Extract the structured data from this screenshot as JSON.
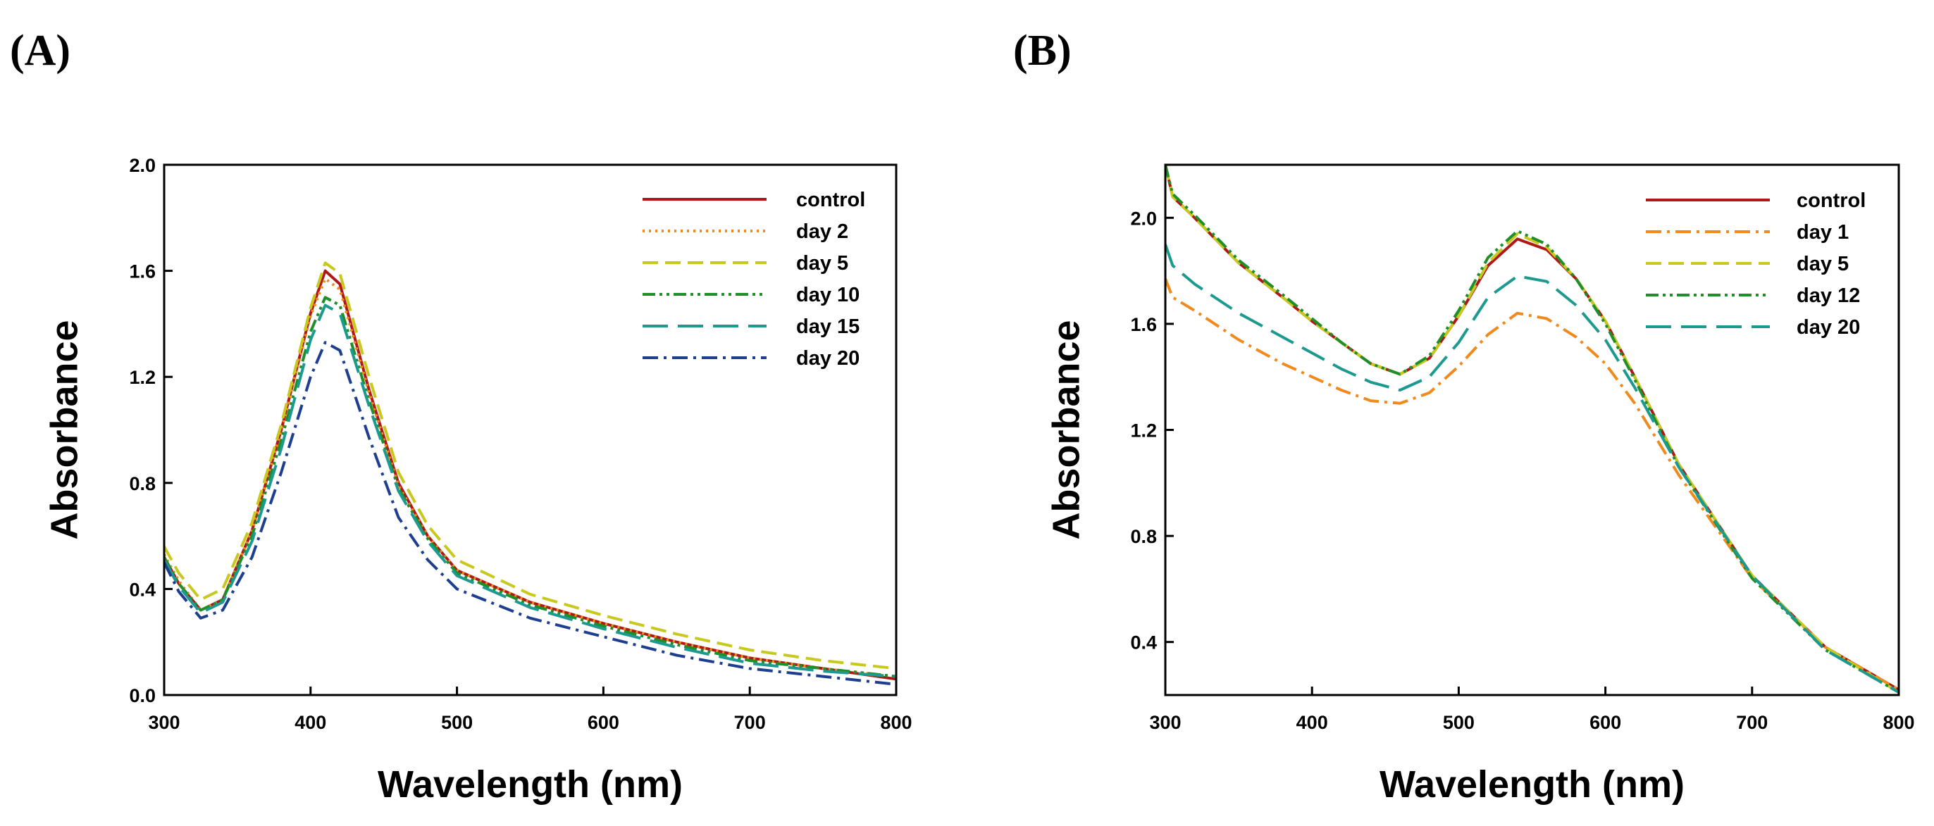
{
  "figure": {
    "panel_labels": [
      "(A)",
      "(B)"
    ]
  },
  "chart_data": [
    {
      "type": "line",
      "panel": "(A)",
      "title": "",
      "xlabel": "Wavelength (nm)",
      "ylabel": "Absorbance",
      "xlim": [
        300,
        800
      ],
      "ylim": [
        0.0,
        2.0
      ],
      "xticks": [
        300,
        400,
        500,
        600,
        700,
        800
      ],
      "yticks": [
        0.0,
        0.4,
        0.8,
        1.2,
        1.6,
        2.0
      ],
      "xtick_labels": [
        "300",
        "400",
        "500",
        "600",
        "700",
        "800"
      ],
      "ytick_labels": [
        "0.0",
        "0.4",
        "0.8",
        "1.2",
        "1.6",
        "2.0"
      ],
      "legend_position": "top-right",
      "grid": false,
      "series": [
        {
          "name": "control",
          "color": "#b01818",
          "dash": "solid",
          "x": [
            300,
            310,
            325,
            340,
            360,
            380,
            400,
            410,
            420,
            440,
            460,
            480,
            500,
            550,
            600,
            650,
            700,
            750,
            800
          ],
          "y": [
            0.52,
            0.42,
            0.32,
            0.36,
            0.62,
            1.0,
            1.44,
            1.6,
            1.55,
            1.15,
            0.8,
            0.6,
            0.47,
            0.35,
            0.27,
            0.2,
            0.14,
            0.1,
            0.06
          ]
        },
        {
          "name": "day 2",
          "color": "#f08a1c",
          "dash": "dotted",
          "x": [
            300,
            310,
            325,
            340,
            360,
            380,
            400,
            410,
            420,
            440,
            460,
            480,
            500,
            550,
            600,
            650,
            700,
            750,
            800
          ],
          "y": [
            0.53,
            0.43,
            0.32,
            0.36,
            0.62,
            1.0,
            1.43,
            1.57,
            1.53,
            1.14,
            0.79,
            0.6,
            0.47,
            0.35,
            0.27,
            0.2,
            0.14,
            0.1,
            0.07
          ]
        },
        {
          "name": "day 5",
          "color": "#c8c81e",
          "dash": "dashed",
          "x": [
            300,
            310,
            325,
            340,
            360,
            380,
            400,
            410,
            420,
            440,
            460,
            480,
            500,
            550,
            600,
            650,
            700,
            750,
            800
          ],
          "y": [
            0.56,
            0.46,
            0.36,
            0.4,
            0.65,
            1.02,
            1.46,
            1.63,
            1.59,
            1.2,
            0.84,
            0.64,
            0.51,
            0.38,
            0.3,
            0.23,
            0.17,
            0.13,
            0.1
          ]
        },
        {
          "name": "day 10",
          "color": "#1f8f2a",
          "dash": "dashdotdot",
          "x": [
            300,
            310,
            325,
            340,
            360,
            380,
            400,
            410,
            420,
            440,
            460,
            480,
            500,
            550,
            600,
            650,
            700,
            750,
            800
          ],
          "y": [
            0.52,
            0.42,
            0.32,
            0.36,
            0.6,
            0.96,
            1.37,
            1.5,
            1.47,
            1.11,
            0.78,
            0.59,
            0.46,
            0.34,
            0.26,
            0.19,
            0.13,
            0.1,
            0.07
          ]
        },
        {
          "name": "day 15",
          "color": "#1d9a8f",
          "dash": "longdash",
          "x": [
            300,
            310,
            325,
            340,
            360,
            380,
            400,
            410,
            420,
            440,
            460,
            480,
            500,
            550,
            600,
            650,
            700,
            750,
            800
          ],
          "y": [
            0.51,
            0.41,
            0.31,
            0.35,
            0.58,
            0.93,
            1.34,
            1.47,
            1.44,
            1.09,
            0.77,
            0.58,
            0.45,
            0.33,
            0.25,
            0.18,
            0.12,
            0.09,
            0.07
          ]
        },
        {
          "name": "day 20",
          "color": "#1e3f8f",
          "dash": "dashdot",
          "x": [
            300,
            310,
            325,
            340,
            360,
            380,
            400,
            410,
            420,
            440,
            460,
            480,
            500,
            550,
            600,
            650,
            700,
            750,
            800
          ],
          "y": [
            0.5,
            0.39,
            0.29,
            0.32,
            0.52,
            0.84,
            1.2,
            1.33,
            1.3,
            0.97,
            0.67,
            0.51,
            0.4,
            0.29,
            0.22,
            0.15,
            0.1,
            0.07,
            0.04
          ]
        }
      ]
    },
    {
      "type": "line",
      "panel": "(B)",
      "title": "",
      "xlabel": "Wavelength (nm)",
      "ylabel": "Absorbance",
      "xlim": [
        300,
        800
      ],
      "ylim": [
        0.2,
        2.2
      ],
      "xticks": [
        300,
        400,
        500,
        600,
        700,
        800
      ],
      "yticks": [
        0.4,
        0.8,
        1.2,
        1.6,
        2.0
      ],
      "xtick_labels": [
        "300",
        "400",
        "500",
        "600",
        "700",
        "800"
      ],
      "ytick_labels": [
        "0.4",
        "0.8",
        "1.2",
        "1.6",
        "2.0"
      ],
      "legend_position": "top-right",
      "grid": false,
      "series": [
        {
          "name": "control",
          "color": "#b01818",
          "dash": "solid",
          "x": [
            300,
            305,
            320,
            350,
            380,
            400,
            420,
            440,
            460,
            480,
            500,
            520,
            540,
            560,
            580,
            600,
            620,
            650,
            700,
            750,
            800
          ],
          "y": [
            2.2,
            2.08,
            2.0,
            1.83,
            1.7,
            1.61,
            1.53,
            1.45,
            1.41,
            1.47,
            1.63,
            1.82,
            1.92,
            1.88,
            1.77,
            1.61,
            1.4,
            1.07,
            0.65,
            0.38,
            0.22
          ]
        },
        {
          "name": "day 1",
          "color": "#f08a1c",
          "dash": "dashdot",
          "x": [
            300,
            305,
            320,
            350,
            380,
            400,
            420,
            440,
            460,
            480,
            500,
            520,
            540,
            560,
            580,
            600,
            620,
            650,
            700,
            750,
            800
          ],
          "y": [
            1.77,
            1.7,
            1.65,
            1.54,
            1.45,
            1.4,
            1.35,
            1.31,
            1.3,
            1.34,
            1.44,
            1.56,
            1.64,
            1.62,
            1.55,
            1.45,
            1.3,
            1.03,
            0.64,
            0.38,
            0.22
          ]
        },
        {
          "name": "day 5",
          "color": "#c8c81e",
          "dash": "dashed",
          "x": [
            300,
            305,
            320,
            350,
            380,
            400,
            420,
            440,
            460,
            480,
            500,
            520,
            540,
            560,
            580,
            600,
            620,
            650,
            700,
            750,
            800
          ],
          "y": [
            2.2,
            2.08,
            2.0,
            1.83,
            1.7,
            1.61,
            1.53,
            1.45,
            1.41,
            1.47,
            1.63,
            1.83,
            1.94,
            1.89,
            1.77,
            1.61,
            1.4,
            1.07,
            0.65,
            0.38,
            0.21
          ]
        },
        {
          "name": "day 12",
          "color": "#1f8f2a",
          "dash": "dashdotdot",
          "x": [
            300,
            305,
            320,
            350,
            380,
            400,
            420,
            440,
            460,
            480,
            500,
            520,
            540,
            560,
            580,
            600,
            620,
            650,
            700,
            750,
            800
          ],
          "y": [
            2.2,
            2.09,
            2.01,
            1.84,
            1.71,
            1.62,
            1.53,
            1.45,
            1.41,
            1.48,
            1.65,
            1.85,
            1.95,
            1.9,
            1.77,
            1.6,
            1.39,
            1.06,
            0.64,
            0.37,
            0.21
          ]
        },
        {
          "name": "day 20",
          "color": "#1d9a8f",
          "dash": "longdash",
          "x": [
            300,
            305,
            320,
            350,
            380,
            400,
            420,
            440,
            460,
            480,
            500,
            520,
            540,
            560,
            580,
            600,
            620,
            650,
            700,
            750,
            800
          ],
          "y": [
            1.9,
            1.82,
            1.75,
            1.64,
            1.55,
            1.49,
            1.43,
            1.38,
            1.35,
            1.4,
            1.53,
            1.7,
            1.78,
            1.76,
            1.67,
            1.54,
            1.36,
            1.06,
            0.65,
            0.37,
            0.21
          ]
        }
      ]
    }
  ]
}
